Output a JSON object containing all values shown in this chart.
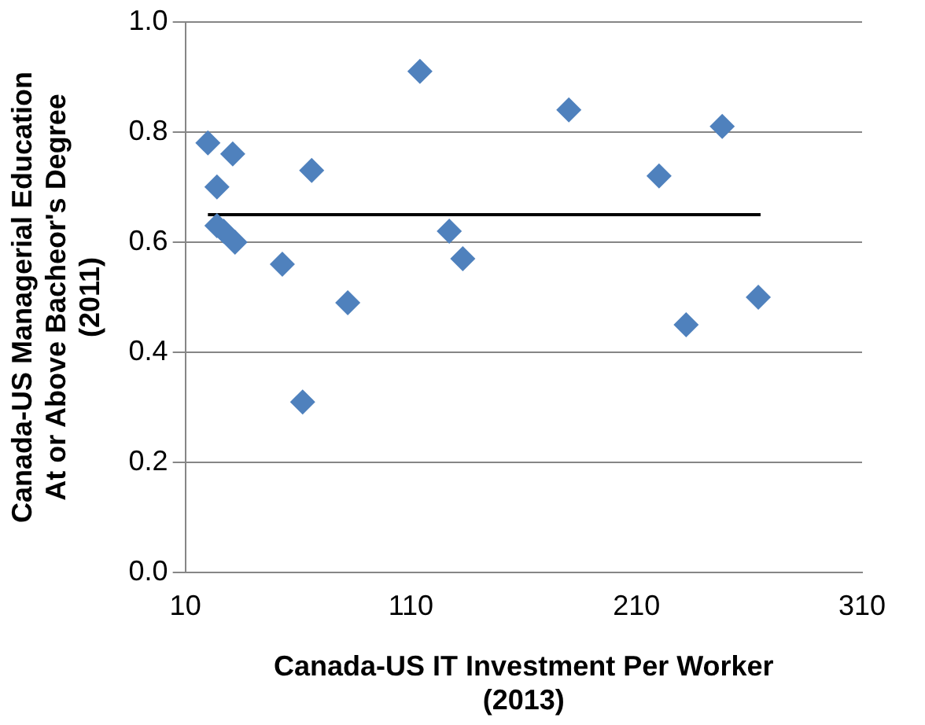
{
  "chart_data": {
    "type": "scatter",
    "xlabel": "Canada-US IT Investment Per Worker (2013)",
    "ylabel": "Canada-US Managerial Education At or Above Bacheor's Degree (2011)",
    "series": [
      {
        "color": "#4f81bd",
        "marker": "diamond",
        "x": [
          20,
          24,
          31,
          24,
          27,
          32,
          53,
          66,
          62,
          82,
          114,
          127,
          133,
          180,
          220,
          232,
          248,
          264
        ],
        "values": [
          0.78,
          0.7,
          0.76,
          0.63,
          0.62,
          0.6,
          0.56,
          0.73,
          0.31,
          0.49,
          0.91,
          0.62,
          0.57,
          0.84,
          0.72,
          0.45,
          0.81,
          0.5
        ]
      },
      {
        "type": "line",
        "color": "#000000",
        "marker": "none",
        "x": [
          20,
          265
        ],
        "values": [
          0.65,
          0.65
        ]
      }
    ],
    "xlim": [
      10,
      310
    ],
    "xticks": [
      10,
      110,
      210,
      310
    ],
    "ylim": [
      0,
      1
    ],
    "yticks": [
      {
        "value": 0,
        "label": "0.0"
      },
      {
        "value": 0.2,
        "label": "0.2"
      },
      {
        "value": 0.4,
        "label": "0.4"
      },
      {
        "value": 0.6,
        "label": "0.6"
      },
      {
        "value": 0.8,
        "label": "0.8"
      },
      {
        "value": 1,
        "label": "1.0"
      }
    ],
    "grid": "y"
  }
}
